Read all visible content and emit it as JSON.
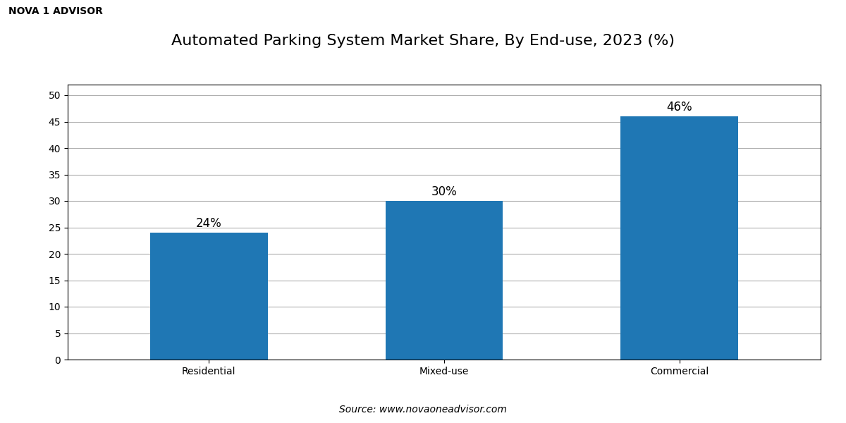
{
  "chart_data": {
    "type": "bar",
    "title": "Automated Parking System Market Share, By End-use, 2023 (%)",
    "categories": [
      "Residential",
      "Mixed-use",
      "Commercial"
    ],
    "values": [
      24,
      30,
      46
    ],
    "value_labels": [
      "24%",
      "30%",
      "46%"
    ],
    "data_labels": true,
    "ylim": [
      0,
      52
    ],
    "yticks": [
      0,
      5,
      10,
      15,
      20,
      25,
      30,
      35,
      40,
      45,
      50
    ],
    "grid": true,
    "annotations": [
      "NOVA 1 ADVISOR",
      "Source: www.novaoneadvisor.com"
    ]
  }
}
